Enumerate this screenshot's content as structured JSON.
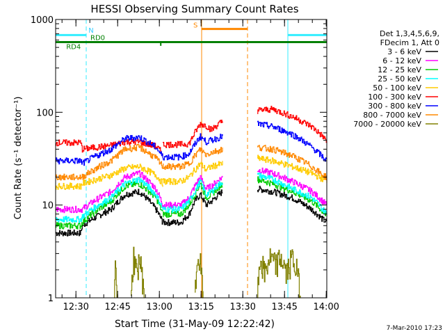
{
  "chart_data": {
    "type": "line",
    "title": "HESSI Observing Summary Count Rates",
    "xlabel": "Start Time (31-May-09 12:22:42)",
    "ylabel": "Count Rate (s⁻¹ detector⁻¹)",
    "yscale": "log",
    "ylim": [
      1,
      1000
    ],
    "xlim_minutes": [
      0,
      97.5
    ],
    "x_unit": "minutes after 12:22:42",
    "x_ticks": [
      {
        "label": "12:30",
        "t": 7.3
      },
      {
        "label": "12:45",
        "t": 22.3
      },
      {
        "label": "13:00",
        "t": 37.3
      },
      {
        "label": "13:15",
        "t": 52.3
      },
      {
        "label": "13:30",
        "t": 67.3
      },
      {
        "label": "13:45",
        "t": 82.3
      },
      {
        "label": "14:00",
        "t": 97.3
      }
    ],
    "y_ticks": [
      {
        "label": "1",
        "v": 1
      },
      {
        "label": "10",
        "v": 10
      },
      {
        "label": "100",
        "v": 100
      },
      {
        "label": "1000",
        "v": 1000
      }
    ],
    "legend": {
      "header": [
        "Det 1,3,4,5,6,9,",
        "FDecim 1, Att 0"
      ],
      "placement": "right"
    },
    "series": [
      {
        "name": "3 - 6 keV",
        "color": "#000000",
        "segments": [
          {
            "x": [
              0,
              9,
              9.5,
              20,
              25,
              30,
              36,
              38.5
            ],
            "y": [
              5,
              5,
              6,
              9,
              13,
              14,
              9,
              6.5
            ]
          },
          {
            "x": [
              38.5,
              45,
              48,
              50,
              52,
              54,
              56,
              60
            ],
            "y": [
              6.5,
              6.5,
              8,
              11,
              13,
              10,
              11,
              14
            ]
          },
          {
            "x": [
              72.5,
              78,
              85,
              92,
              96,
              97.5
            ],
            "y": [
              15,
              14,
              12,
              9,
              7,
              6.5
            ]
          }
        ]
      },
      {
        "name": "6 - 12 keV",
        "color": "#ff00ff",
        "segments": [
          {
            "x": [
              0,
              9,
              9.5,
              20,
              25,
              30,
              36,
              38.5
            ],
            "y": [
              9,
              9,
              9,
              14,
              20,
              22,
              15,
              10
            ]
          },
          {
            "x": [
              38.5,
              45,
              48,
              50,
              52,
              54,
              56,
              60
            ],
            "y": [
              10,
              10,
              12,
              16,
              20,
              15,
              16,
              20
            ]
          },
          {
            "x": [
              72.5,
              78,
              85,
              92,
              96,
              97.5
            ],
            "y": [
              24,
              22,
              18,
              14,
              11,
              10
            ]
          }
        ]
      },
      {
        "name": "12 - 25 keV",
        "color": "#00cc00",
        "segments": [
          {
            "x": [
              0,
              9,
              9.5,
              20,
              25,
              30,
              36,
              38.5
            ],
            "y": [
              6,
              6,
              6.5,
              11,
              16,
              17,
              12,
              8
            ]
          },
          {
            "x": [
              38.5,
              45,
              48,
              50,
              52,
              54,
              56,
              60
            ],
            "y": [
              8,
              8,
              10,
              13,
              17,
              12,
              13,
              17
            ]
          },
          {
            "x": [
              72.5,
              78,
              85,
              92,
              96,
              97.5
            ],
            "y": [
              19,
              17,
              14,
              11,
              8.5,
              7.5
            ]
          }
        ]
      },
      {
        "name": "25 - 50 keV",
        "color": "#00ffff",
        "segments": [
          {
            "x": [
              0,
              9,
              9.5,
              20,
              25,
              30,
              36,
              38.5
            ],
            "y": [
              7,
              7,
              7.5,
              12,
              17,
              19,
              13,
              9
            ]
          },
          {
            "x": [
              38.5,
              45,
              48,
              50,
              52,
              54,
              56,
              60
            ],
            "y": [
              9,
              9,
              11,
              14,
              18,
              13,
              14,
              18
            ]
          },
          {
            "x": [
              72.5,
              78,
              85,
              92,
              96,
              97.5
            ],
            "y": [
              21,
              19,
              15,
              12,
              9,
              8
            ]
          }
        ]
      },
      {
        "name": "50 - 100 keV",
        "color": "#ffcc00",
        "segments": [
          {
            "x": [
              0,
              9,
              9.5,
              20,
              25,
              30,
              36,
              38.5
            ],
            "y": [
              16,
              16,
              17,
              21,
              25,
              26,
              21,
              17
            ]
          },
          {
            "x": [
              38.5,
              45,
              48,
              50,
              52,
              54,
              56,
              60
            ],
            "y": [
              18,
              18,
              20,
              24,
              28,
              24,
              26,
              28
            ]
          },
          {
            "x": [
              72.5,
              78,
              85,
              92,
              96,
              97.5
            ],
            "y": [
              32,
              30,
              26,
              22,
              19,
              18
            ]
          }
        ]
      },
      {
        "name": "100 - 300 keV",
        "color": "#ff0000",
        "segments": [
          {
            "x": [
              0,
              9,
              9.5,
              20,
              25,
              30,
              36,
              38.5
            ],
            "y": [
              47,
              47,
              40,
              44,
              48,
              48,
              43,
              36
            ]
          },
          {
            "x": [
              38.5,
              45,
              48,
              50,
              52,
              54,
              56,
              60
            ],
            "y": [
              45,
              45,
              46,
              60,
              75,
              72,
              65,
              80
            ]
          },
          {
            "x": [
              72.5,
              78,
              85,
              92,
              96,
              97.5
            ],
            "y": [
              105,
              108,
              90,
              70,
              55,
              48
            ]
          }
        ]
      },
      {
        "name": "300 - 800 keV",
        "color": "#0000ff",
        "segments": [
          {
            "x": [
              0,
              9,
              9.5,
              20,
              25,
              30,
              36,
              38.5
            ],
            "y": [
              30,
              30,
              28,
              40,
              52,
              54,
              42,
              33
            ]
          },
          {
            "x": [
              38.5,
              45,
              48,
              50,
              52,
              54,
              56,
              60
            ],
            "y": [
              33,
              33,
              36,
              45,
              55,
              48,
              50,
              55
            ]
          },
          {
            "x": [
              72.5,
              78,
              85,
              92,
              96,
              97.5
            ],
            "y": [
              75,
              70,
              58,
              42,
              33,
              30
            ]
          }
        ]
      },
      {
        "name": "800 - 7000 keV",
        "color": "#ff8800",
        "segments": [
          {
            "x": [
              0,
              9,
              9.5,
              20,
              25,
              30,
              36,
              38.5
            ],
            "y": [
              20,
              20,
              20,
              30,
              40,
              42,
              32,
              26
            ]
          },
          {
            "x": [
              38.5,
              45,
              48,
              50,
              52,
              54,
              56,
              60
            ],
            "y": [
              26,
              26,
              28,
              34,
              40,
              35,
              37,
              40
            ]
          },
          {
            "x": [
              72.5,
              78,
              85,
              92,
              96,
              97.5
            ],
            "y": [
              42,
              40,
              34,
              26,
              21,
              20
            ]
          }
        ]
      },
      {
        "name": "7000 - 20000 keV",
        "color": "#808000",
        "segments": [
          {
            "x": [
              21,
              21.5,
              22
            ],
            "y": [
              1,
              2.5,
              1
            ]
          },
          {
            "x": [
              27,
              28,
              29,
              30,
              31,
              32
            ],
            "y": [
              1,
              3,
              2,
              3,
              2,
              1
            ]
          },
          {
            "x": [
              50,
              51,
              52,
              53
            ],
            "y": [
              1,
              3,
              2.5,
              1
            ]
          },
          {
            "x": [
              72.5,
              73.5,
              75,
              77,
              79,
              81,
              83,
              85,
              87,
              88
            ],
            "y": [
              1,
              3,
              2,
              3,
              2.5,
              3,
              2,
              3,
              2,
              1
            ]
          }
        ]
      }
    ],
    "shading": [
      {
        "label": "RD0",
        "color": "#33eeff",
        "bars": [
          {
            "t0": 0,
            "t1": 11,
            "v": 680
          },
          {
            "t0": 83.5,
            "t1": 97.5,
            "v": 680
          }
        ]
      },
      {
        "label": "RD4",
        "color": "#008000",
        "bars": [
          {
            "t0": 0,
            "t1": 97.5,
            "v": 570
          }
        ]
      },
      {
        "label": "S",
        "color": "#ff8800",
        "bars": [
          {
            "t0": 52.5,
            "t1": 69,
            "v": 790
          }
        ]
      }
    ],
    "flags_text": {
      "N": "N",
      "S": "S",
      "RD0": "RD0",
      "RD4": "RD4"
    },
    "vertical_lines": [
      {
        "t": 11,
        "style": "dashed",
        "color": "#33eeff"
      },
      {
        "t": 83.5,
        "style": "solid",
        "color": "#33eeff"
      },
      {
        "t": 97.5,
        "style": "dashed",
        "color": "#33eeff"
      },
      {
        "t": 52.5,
        "style": "solid",
        "color": "#ff8800"
      },
      {
        "t": 69,
        "style": "dashed",
        "color": "#ff8800"
      }
    ],
    "footer_date": "7-Mar-2010 17:23"
  }
}
